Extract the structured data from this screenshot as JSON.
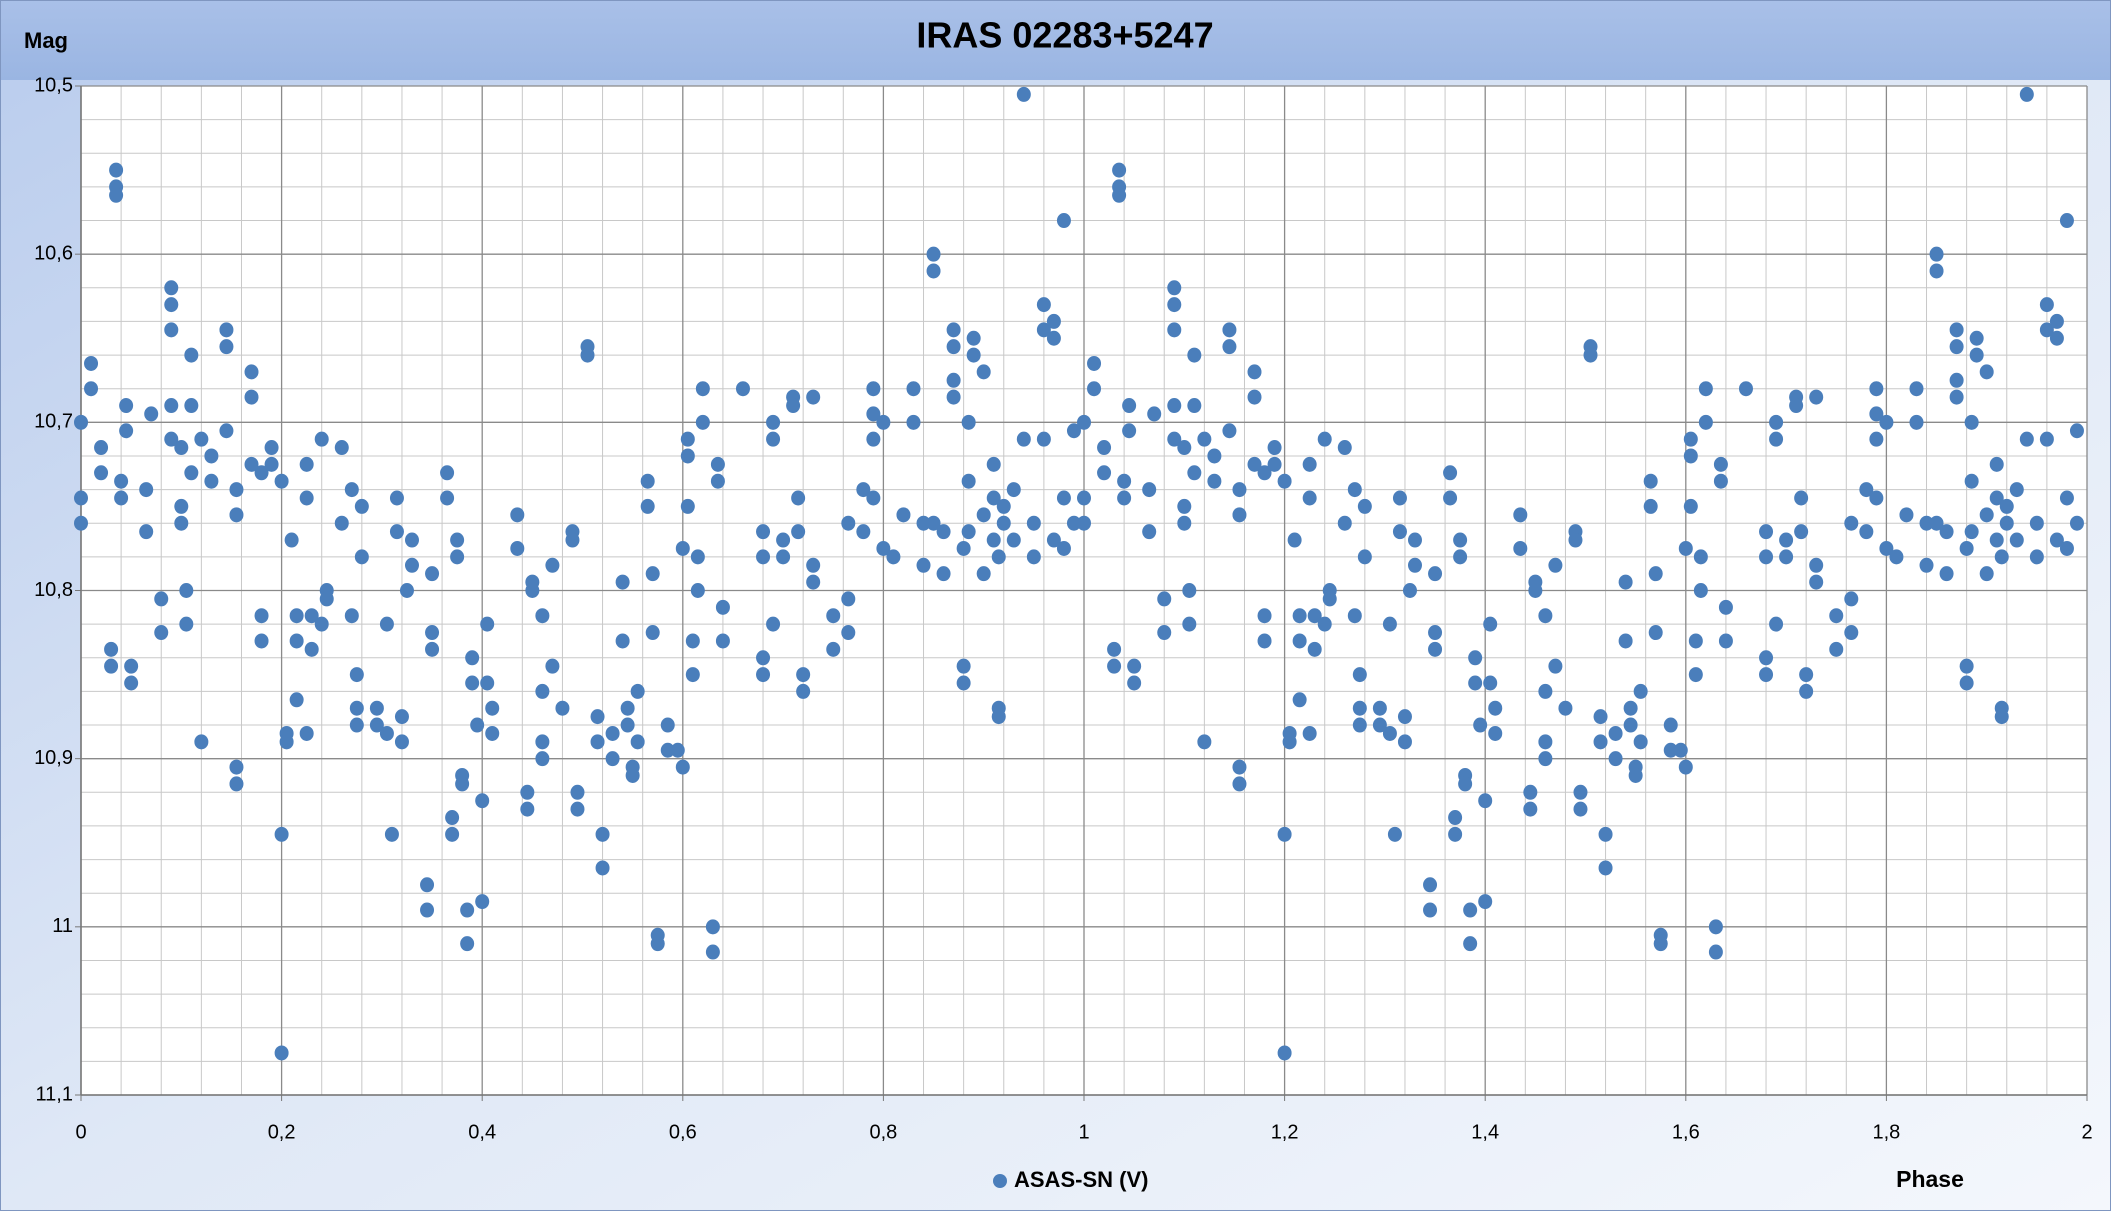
{
  "chart_data": {
    "type": "scatter",
    "title": "IRAS 02283+5247",
    "x_label": "Phase",
    "y_label": "Mag",
    "xlim": [
      0,
      2
    ],
    "ylim": [
      10.5,
      11.1
    ],
    "y_inverted": true,
    "grid": true,
    "legend": "bottom",
    "xticks": [
      0,
      {
        "value": 0.2,
        "label": "0,2"
      },
      {
        "value": 0.4,
        "label": "0,4"
      },
      {
        "value": 0.6,
        "label": "0,6"
      },
      {
        "value": 0.8,
        "label": "0,8"
      },
      1,
      {
        "value": 1.2,
        "label": "1,2"
      },
      {
        "value": 1.4,
        "label": "1,4"
      },
      {
        "value": 1.6,
        "label": "1,6"
      },
      {
        "value": 1.8,
        "label": "1,8"
      },
      2
    ],
    "yticks": [
      {
        "value": 10.5,
        "label": "10,5"
      },
      {
        "value": 10.6,
        "label": "10,6"
      },
      {
        "value": 10.7,
        "label": "10,7"
      },
      {
        "value": 10.8,
        "label": "10,8"
      },
      {
        "value": 10.9,
        "label": "10,9"
      },
      11,
      {
        "value": 11.1,
        "label": "11,1"
      }
    ],
    "x_minor_grid": [
      0.04,
      0.08,
      0.12,
      0.16,
      0.24,
      0.28,
      0.32,
      0.36,
      0.44,
      0.48,
      0.52,
      0.56,
      0.64,
      0.68,
      0.72,
      0.76,
      0.84,
      0.88,
      0.92,
      0.96,
      1.04,
      1.08,
      1.12,
      1.16,
      1.24,
      1.28,
      1.32,
      1.36,
      1.44,
      1.48,
      1.52,
      1.56,
      1.64,
      1.68,
      1.72,
      1.76,
      1.84,
      1.88,
      1.92,
      1.96
    ],
    "y_minor_grid": [
      10.52,
      10.54,
      10.56,
      10.58,
      10.62,
      10.64,
      10.66,
      10.68,
      10.72,
      10.74,
      10.76,
      10.78,
      10.82,
      10.84,
      10.86,
      10.88,
      10.92,
      10.94,
      10.96,
      10.98,
      11.02,
      11.04,
      11.06,
      11.08
    ],
    "x": [
      0,
      0,
      0,
      0.01,
      0.01,
      0.02,
      0.02,
      0.03,
      0.03,
      0.035,
      0.035,
      0.035,
      0.04,
      0.04,
      0.045,
      0.045,
      0.05,
      0.05,
      0.065,
      0.065,
      0.07,
      0.08,
      0.08,
      0.09,
      0.09,
      0.09,
      0.09,
      0.09,
      0.1,
      0.1,
      0.1,
      0.105,
      0.105,
      0.11,
      0.11,
      0.11,
      0.12,
      0.12,
      0.13,
      0.13,
      0.145,
      0.145,
      0.145,
      0.155,
      0.155,
      0.155,
      0.155,
      0.17,
      0.17,
      0.17,
      0.18,
      0.18,
      0.18,
      0.19,
      0.19,
      0.2,
      0.2,
      0.2,
      0.205,
      0.205,
      0.21,
      0.215,
      0.215,
      0.215,
      0.225,
      0.225,
      0.225,
      0.23,
      0.23,
      0.24,
      0.24,
      0.245,
      0.245,
      0.26,
      0.26,
      0.27,
      0.27,
      0.275,
      0.275,
      0.275,
      0.28,
      0.28,
      0.295,
      0.295,
      0.305,
      0.305,
      0.31,
      0.315,
      0.315,
      0.32,
      0.32,
      0.325,
      0.33,
      0.33,
      0.345,
      0.345,
      0.35,
      0.35,
      0.35,
      0.365,
      0.365,
      0.37,
      0.37,
      0.375,
      0.375,
      0.38,
      0.38,
      0.385,
      0.385,
      0.39,
      0.39,
      0.395,
      0.4,
      0.4,
      0.405,
      0.405,
      0.41,
      0.41,
      0.435,
      0.435,
      0.445,
      0.445,
      0.45,
      0.45,
      0.46,
      0.46,
      0.46,
      0.46,
      0.47,
      0.47,
      0.48,
      0.49,
      0.49,
      0.495,
      0.495,
      0.505,
      0.505,
      0.515,
      0.515,
      0.52,
      0.52,
      0.53,
      0.53,
      0.54,
      0.54,
      0.545,
      0.545,
      0.55,
      0.55,
      0.555,
      0.555,
      0.565,
      0.565,
      0.57,
      0.57,
      0.575,
      0.575,
      0.585,
      0.585,
      0.595,
      0.6,
      0.6,
      0.605,
      0.605,
      0.605,
      0.61,
      0.61,
      0.615,
      0.615,
      0.62,
      0.62,
      0.63,
      0.63,
      0.635,
      0.635,
      0.64,
      0.64,
      0.66,
      0.68,
      0.68,
      0.68,
      0.68,
      0.69,
      0.69,
      0.69,
      0.7,
      0.7,
      0.71,
      0.71,
      0.715,
      0.715,
      0.72,
      0.72,
      0.73,
      0.73,
      0.73,
      0.75,
      0.75,
      0.765,
      0.765,
      0.765,
      0.78,
      0.78,
      0.79,
      0.79,
      0.79,
      0.79,
      0.8,
      0.8,
      0.81,
      0.82,
      0.83,
      0.83,
      0.84,
      0.84,
      0.85,
      0.85,
      0.85,
      0.86,
      0.86,
      0.87,
      0.87,
      0.87,
      0.87,
      0.88,
      0.88,
      0.88,
      0.885,
      0.885,
      0.885,
      0.89,
      0.89,
      0.9,
      0.9,
      0.9,
      0.91,
      0.91,
      0.91,
      0.915,
      0.915,
      0.915,
      0.92,
      0.92,
      0.93,
      0.93,
      0.94,
      0.94,
      0.95,
      0.95,
      0.96,
      0.96,
      0.96,
      0.97,
      0.97,
      0.97,
      0.98,
      0.98,
      0.98,
      0.99,
      0.99,
      1,
      1,
      1,
      1.01,
      1.01,
      1.02,
      1.02,
      1.03,
      1.03,
      1.035,
      1.035,
      1.035,
      1.04,
      1.04,
      1.045,
      1.045,
      1.05,
      1.05,
      1.065,
      1.065,
      1.07,
      1.08,
      1.08,
      1.09,
      1.09,
      1.09,
      1.09,
      1.09,
      1.1,
      1.1,
      1.1,
      1.105,
      1.105,
      1.11,
      1.11,
      1.11,
      1.12,
      1.12,
      1.13,
      1.13,
      1.145,
      1.145,
      1.145,
      1.155,
      1.155,
      1.155,
      1.155,
      1.17,
      1.17,
      1.17,
      1.18,
      1.18,
      1.18,
      1.19,
      1.19,
      1.2,
      1.2,
      1.2,
      1.205,
      1.205,
      1.21,
      1.215,
      1.215,
      1.215,
      1.225,
      1.225,
      1.225,
      1.23,
      1.23,
      1.24,
      1.24,
      1.245,
      1.245,
      1.26,
      1.26,
      1.27,
      1.27,
      1.275,
      1.275,
      1.275,
      1.28,
      1.28,
      1.295,
      1.295,
      1.305,
      1.305,
      1.31,
      1.315,
      1.315,
      1.32,
      1.32,
      1.325,
      1.33,
      1.33,
      1.345,
      1.345,
      1.35,
      1.35,
      1.35,
      1.365,
      1.365,
      1.37,
      1.37,
      1.375,
      1.375,
      1.38,
      1.38,
      1.385,
      1.385,
      1.39,
      1.39,
      1.395,
      1.4,
      1.4,
      1.405,
      1.405,
      1.41,
      1.41,
      1.435,
      1.435,
      1.445,
      1.445,
      1.45,
      1.45,
      1.46,
      1.46,
      1.46,
      1.46,
      1.47,
      1.47,
      1.48,
      1.49,
      1.49,
      1.495,
      1.495,
      1.505,
      1.505,
      1.515,
      1.515,
      1.52,
      1.52,
      1.53,
      1.53,
      1.54,
      1.54,
      1.545,
      1.545,
      1.55,
      1.55,
      1.555,
      1.555,
      1.565,
      1.565,
      1.57,
      1.57,
      1.575,
      1.575,
      1.585,
      1.585,
      1.595,
      1.6,
      1.6,
      1.605,
      1.605,
      1.605,
      1.61,
      1.61,
      1.615,
      1.615,
      1.62,
      1.62,
      1.63,
      1.63,
      1.635,
      1.635,
      1.64,
      1.64,
      1.66,
      1.68,
      1.68,
      1.68,
      1.68,
      1.69,
      1.69,
      1.69,
      1.7,
      1.7,
      1.71,
      1.71,
      1.715,
      1.715,
      1.72,
      1.72,
      1.73,
      1.73,
      1.73,
      1.75,
      1.75,
      1.765,
      1.765,
      1.765,
      1.78,
      1.78,
      1.79,
      1.79,
      1.79,
      1.79,
      1.8,
      1.8,
      1.81,
      1.82,
      1.83,
      1.83,
      1.84,
      1.84,
      1.85,
      1.85,
      1.85,
      1.86,
      1.86,
      1.87,
      1.87,
      1.87,
      1.87,
      1.88,
      1.88,
      1.88,
      1.885,
      1.885,
      1.885,
      1.89,
      1.89,
      1.9,
      1.9,
      1.9,
      1.91,
      1.91,
      1.91,
      1.915,
      1.915,
      1.915,
      1.92,
      1.92,
      1.93,
      1.93,
      1.94,
      1.94,
      1.95,
      1.95,
      1.96,
      1.96,
      1.96,
      1.97,
      1.97,
      1.97,
      1.98,
      1.98,
      1.98,
      1.99,
      1.99
    ],
    "series": [
      {
        "name": "ASAS-SN (V)",
        "color": "#4a7ebb",
        "values": [
          10.7,
          10.745,
          10.76,
          10.665,
          10.68,
          10.715,
          10.73,
          10.835,
          10.845,
          10.55,
          10.56,
          10.565,
          10.735,
          10.745,
          10.69,
          10.705,
          10.845,
          10.855,
          10.74,
          10.765,
          10.695,
          10.805,
          10.825,
          10.62,
          10.63,
          10.645,
          10.69,
          10.71,
          10.715,
          10.75,
          10.76,
          10.8,
          10.82,
          10.66,
          10.69,
          10.73,
          10.71,
          10.89,
          10.72,
          10.735,
          10.645,
          10.655,
          10.705,
          10.74,
          10.755,
          10.905,
          10.915,
          10.67,
          10.685,
          10.725,
          10.815,
          10.83,
          10.73,
          10.715,
          10.725,
          10.945,
          11.075,
          10.735,
          10.885,
          10.89,
          10.77,
          10.865,
          10.815,
          10.83,
          10.885,
          10.725,
          10.745,
          10.815,
          10.835,
          10.71,
          10.82,
          10.8,
          10.805,
          10.76,
          10.715,
          10.815,
          10.74,
          10.85,
          10.87,
          10.88,
          10.75,
          10.78,
          10.87,
          10.88,
          10.885,
          10.82,
          10.945,
          10.745,
          10.765,
          10.875,
          10.89,
          10.8,
          10.77,
          10.785,
          10.975,
          10.99,
          10.79,
          10.825,
          10.835,
          10.73,
          10.745,
          10.935,
          10.945,
          10.77,
          10.78,
          10.91,
          10.915,
          10.99,
          11.01,
          10.84,
          10.855,
          10.88,
          10.925,
          10.985,
          10.82,
          10.855,
          10.87,
          10.885,
          10.755,
          10.775,
          10.92,
          10.93,
          10.795,
          10.8,
          10.815,
          10.86,
          10.89,
          10.9,
          10.785,
          10.845,
          10.87,
          10.765,
          10.77,
          10.92,
          10.93,
          10.655,
          10.66,
          10.875,
          10.89,
          10.945,
          10.965,
          10.9,
          10.885,
          10.83,
          10.795,
          10.87,
          10.88,
          10.905,
          10.91,
          10.86,
          10.89,
          10.735,
          10.75,
          10.825,
          10.79,
          11.005,
          11.01,
          10.88,
          10.895,
          10.895,
          10.775,
          10.905,
          10.71,
          10.72,
          10.75,
          10.83,
          10.85,
          10.78,
          10.8,
          10.68,
          10.7,
          11.0,
          11.015,
          10.725,
          10.735,
          10.83,
          10.81,
          10.68,
          10.765,
          10.78,
          10.84,
          10.85,
          10.7,
          10.71,
          10.82,
          10.77,
          10.78,
          10.685,
          10.69,
          10.745,
          10.765,
          10.85,
          10.86,
          10.685,
          10.785,
          10.795,
          10.815,
          10.835,
          10.805,
          10.825,
          10.76,
          10.765,
          10.74,
          10.68,
          10.695,
          10.71,
          10.745,
          10.775,
          10.7,
          10.78,
          10.755,
          10.68,
          10.7,
          10.76,
          10.785,
          10.6,
          10.61,
          10.76,
          10.765,
          10.79,
          10.645,
          10.655,
          10.675,
          10.685,
          10.775,
          10.845,
          10.855,
          10.7,
          10.735,
          10.765,
          10.65,
          10.66,
          10.67,
          10.755,
          10.79,
          10.725,
          10.745,
          10.77,
          10.87,
          10.875,
          10.78,
          10.75,
          10.76,
          10.74,
          10.77,
          10.505,
          10.71,
          10.78,
          10.76,
          10.63,
          10.645,
          10.71,
          10.64,
          10.65,
          10.77,
          10.58,
          10.775,
          10.745,
          10.76,
          10.705,
          10.7,
          10.745,
          10.76,
          10.665,
          10.68,
          10.715,
          10.73,
          10.835,
          10.845,
          10.55,
          10.56,
          10.565,
          10.735,
          10.745,
          10.69,
          10.705,
          10.845,
          10.855,
          10.74,
          10.765,
          10.695,
          10.805,
          10.825,
          10.62,
          10.63,
          10.645,
          10.69,
          10.71,
          10.715,
          10.75,
          10.76,
          10.8,
          10.82,
          10.66,
          10.69,
          10.73,
          10.71,
          10.89,
          10.72,
          10.735,
          10.645,
          10.655,
          10.705,
          10.74,
          10.755,
          10.905,
          10.915,
          10.67,
          10.685,
          10.725,
          10.815,
          10.83,
          10.73,
          10.715,
          10.725,
          10.945,
          11.075,
          10.735,
          10.885,
          10.89,
          10.77,
          10.865,
          10.815,
          10.83,
          10.885,
          10.725,
          10.745,
          10.815,
          10.835,
          10.71,
          10.82,
          10.8,
          10.805,
          10.76,
          10.715,
          10.815,
          10.74,
          10.85,
          10.87,
          10.88,
          10.75,
          10.78,
          10.87,
          10.88,
          10.885,
          10.82,
          10.945,
          10.745,
          10.765,
          10.875,
          10.89,
          10.8,
          10.77,
          10.785,
          10.975,
          10.99,
          10.79,
          10.825,
          10.835,
          10.73,
          10.745,
          10.935,
          10.945,
          10.77,
          10.78,
          10.91,
          10.915,
          10.99,
          11.01,
          10.84,
          10.855,
          10.88,
          10.925,
          10.985,
          10.82,
          10.855,
          10.87,
          10.885,
          10.755,
          10.775,
          10.92,
          10.93,
          10.795,
          10.8,
          10.815,
          10.86,
          10.89,
          10.9,
          10.785,
          10.845,
          10.87,
          10.765,
          10.77,
          10.92,
          10.93,
          10.655,
          10.66,
          10.875,
          10.89,
          10.945,
          10.965,
          10.9,
          10.885,
          10.83,
          10.795,
          10.87,
          10.88,
          10.905,
          10.91,
          10.86,
          10.89,
          10.735,
          10.75,
          10.825,
          10.79,
          11.005,
          11.01,
          10.88,
          10.895,
          10.895,
          10.775,
          10.905,
          10.71,
          10.72,
          10.75,
          10.83,
          10.85,
          10.78,
          10.8,
          10.68,
          10.7,
          11.0,
          11.015,
          10.725,
          10.735,
          10.83,
          10.81,
          10.68,
          10.765,
          10.78,
          10.84,
          10.85,
          10.7,
          10.71,
          10.82,
          10.77,
          10.78,
          10.685,
          10.69,
          10.745,
          10.765,
          10.85,
          10.86,
          10.685,
          10.785,
          10.795,
          10.815,
          10.835,
          10.805,
          10.825,
          10.76,
          10.765,
          10.74,
          10.68,
          10.695,
          10.71,
          10.745,
          10.775,
          10.7,
          10.78,
          10.755,
          10.68,
          10.7,
          10.76,
          10.785,
          10.6,
          10.61,
          10.76,
          10.765,
          10.79,
          10.645,
          10.655,
          10.675,
          10.685,
          10.775,
          10.845,
          10.855,
          10.7,
          10.735,
          10.765,
          10.65,
          10.66,
          10.67,
          10.755,
          10.79,
          10.725,
          10.745,
          10.77,
          10.87,
          10.875,
          10.78,
          10.75,
          10.76,
          10.74,
          10.77,
          10.505,
          10.71,
          10.78,
          10.76,
          10.63,
          10.645,
          10.71,
          10.64,
          10.65,
          10.77,
          10.58,
          10.775,
          10.745,
          10.76,
          10.705
        ]
      }
    ]
  }
}
